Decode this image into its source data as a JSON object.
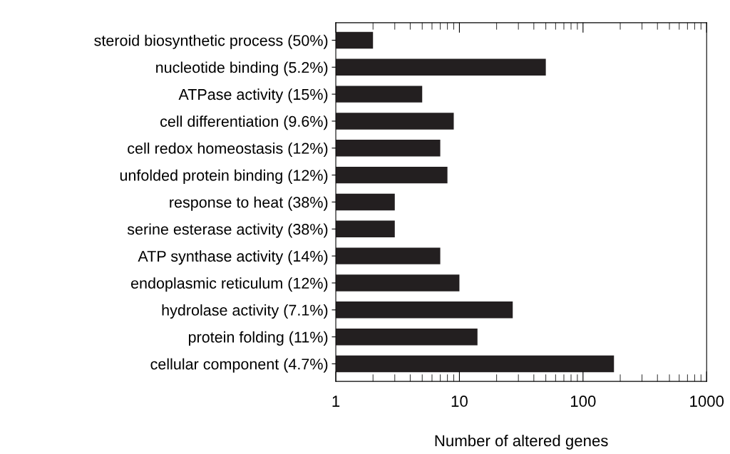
{
  "chart_data": {
    "type": "bar",
    "orientation": "horizontal",
    "log": "x",
    "categories": [
      "steroid biosynthetic process (50%)",
      "nucleotide binding (5.2%)",
      "ATPase activity (15%)",
      "cell differentiation (9.6%)",
      "cell redox homeostasis (12%)",
      "unfolded protein binding (12%)",
      "response to heat (38%)",
      "serine esterase activity (38%)",
      "ATP synthase activity (14%)",
      "endoplasmic reticulum (12%)",
      "hydrolase activity (7.1%)",
      "protein folding (11%)",
      "cellular component (4.7%)"
    ],
    "values": [
      2,
      50,
      5,
      9,
      7,
      8,
      3,
      3,
      7,
      10,
      27,
      14,
      178
    ],
    "color": "#231f20",
    "xlabel": "Number of altered genes",
    "xlim": [
      1,
      1000
    ],
    "xticks": [
      1,
      10,
      100,
      1000
    ],
    "grid": false,
    "legend": false
  }
}
